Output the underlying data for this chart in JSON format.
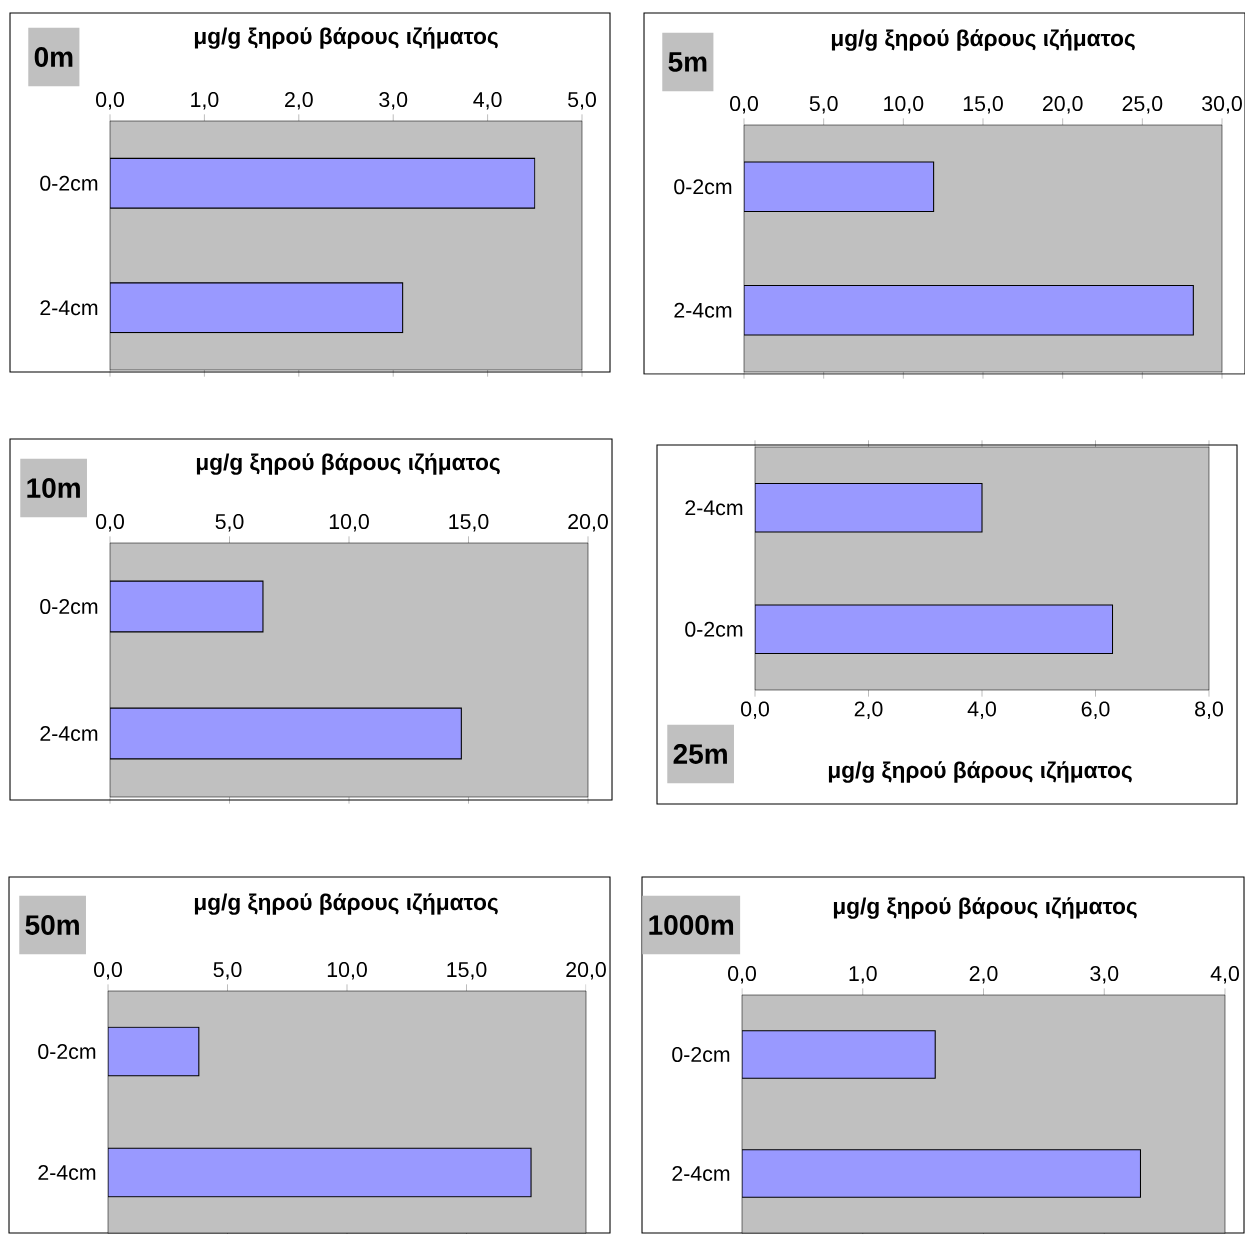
{
  "chart_data": [
    {
      "type": "bar",
      "orientation": "horizontal",
      "title": "0m",
      "xlabel": "μg/g ξηρού βάρους ιζήματος",
      "categories": [
        "0-2cm",
        "2-4cm"
      ],
      "values": [
        4.5,
        3.1
      ],
      "color": "#9999ff",
      "xlim": [
        0,
        5
      ],
      "xticks": [
        {
          "value": 0,
          "label": "0,0"
        },
        {
          "value": 1,
          "label": "1,0"
        },
        {
          "value": 2,
          "label": "2,0"
        },
        {
          "value": 3,
          "label": "3,0"
        },
        {
          "value": 4,
          "label": "4,0"
        },
        {
          "value": 5,
          "label": "5,0"
        }
      ]
    },
    {
      "type": "bar",
      "orientation": "horizontal",
      "title": "5m",
      "xlabel": "μg/g ξηρού βάρους ιζήματος",
      "categories": [
        "0-2cm",
        "2-4cm"
      ],
      "values": [
        11.9,
        28.2
      ],
      "color": "#9999ff",
      "xlim": [
        0,
        30
      ],
      "xticks": [
        {
          "value": 0,
          "label": "0,0"
        },
        {
          "value": 5,
          "label": "5,0"
        },
        {
          "value": 10,
          "label": "10,0"
        },
        {
          "value": 15,
          "label": "15,0"
        },
        {
          "value": 20,
          "label": "20,0"
        },
        {
          "value": 25,
          "label": "25,0"
        },
        {
          "value": 30,
          "label": "30,0"
        }
      ]
    },
    {
      "type": "bar",
      "orientation": "horizontal",
      "title": "10m",
      "xlabel": "μg/g ξηρού βάρους ιζήματος",
      "categories": [
        "0-2cm",
        "2-4cm"
      ],
      "values": [
        6.4,
        14.7
      ],
      "color": "#9999ff",
      "xlim": [
        0,
        20
      ],
      "xticks": [
        {
          "value": 0,
          "label": "0,0"
        },
        {
          "value": 5,
          "label": "5,0"
        },
        {
          "value": 10,
          "label": "10,0"
        },
        {
          "value": 15,
          "label": "15,0"
        },
        {
          "value": 20,
          "label": "20,0"
        }
      ]
    },
    {
      "type": "bar",
      "orientation": "horizontal",
      "title": "25m",
      "xlabel": "μg/g ξηρού βάρους ιζήματος",
      "categories": [
        "2-4cm",
        "0-2cm"
      ],
      "values": [
        4.0,
        6.3
      ],
      "color": "#9999ff",
      "xlim": [
        0,
        8
      ],
      "xticks": [
        {
          "value": 0,
          "label": "0,0"
        },
        {
          "value": 2,
          "label": "2,0"
        },
        {
          "value": 4,
          "label": "4,0"
        },
        {
          "value": 6,
          "label": "6,0"
        },
        {
          "value": 8,
          "label": "8,0"
        }
      ]
    },
    {
      "type": "bar",
      "orientation": "horizontal",
      "title": "50m",
      "xlabel": "μg/g ξηρού βάρους ιζήματος",
      "categories": [
        "0-2cm",
        "2-4cm"
      ],
      "values": [
        3.8,
        17.7
      ],
      "color": "#9999ff",
      "xlim": [
        0,
        20
      ],
      "xticks": [
        {
          "value": 0,
          "label": "0,0"
        },
        {
          "value": 5,
          "label": "5,0"
        },
        {
          "value": 10,
          "label": "10,0"
        },
        {
          "value": 15,
          "label": "15,0"
        },
        {
          "value": 20,
          "label": "20,0"
        }
      ]
    },
    {
      "type": "bar",
      "orientation": "horizontal",
      "title": "1000m",
      "xlabel": "μg/g ξηρού βάρους ιζήματος",
      "categories": [
        "0-2cm",
        "2-4cm"
      ],
      "values": [
        1.6,
        3.3
      ],
      "color": "#9999ff",
      "xlim": [
        0,
        4
      ],
      "xticks": [
        {
          "value": 0,
          "label": "0,0"
        },
        {
          "value": 1,
          "label": "1,0"
        },
        {
          "value": 2,
          "label": "2,0"
        },
        {
          "value": 3,
          "label": "3,0"
        },
        {
          "value": 4,
          "label": "4,0"
        }
      ]
    }
  ]
}
